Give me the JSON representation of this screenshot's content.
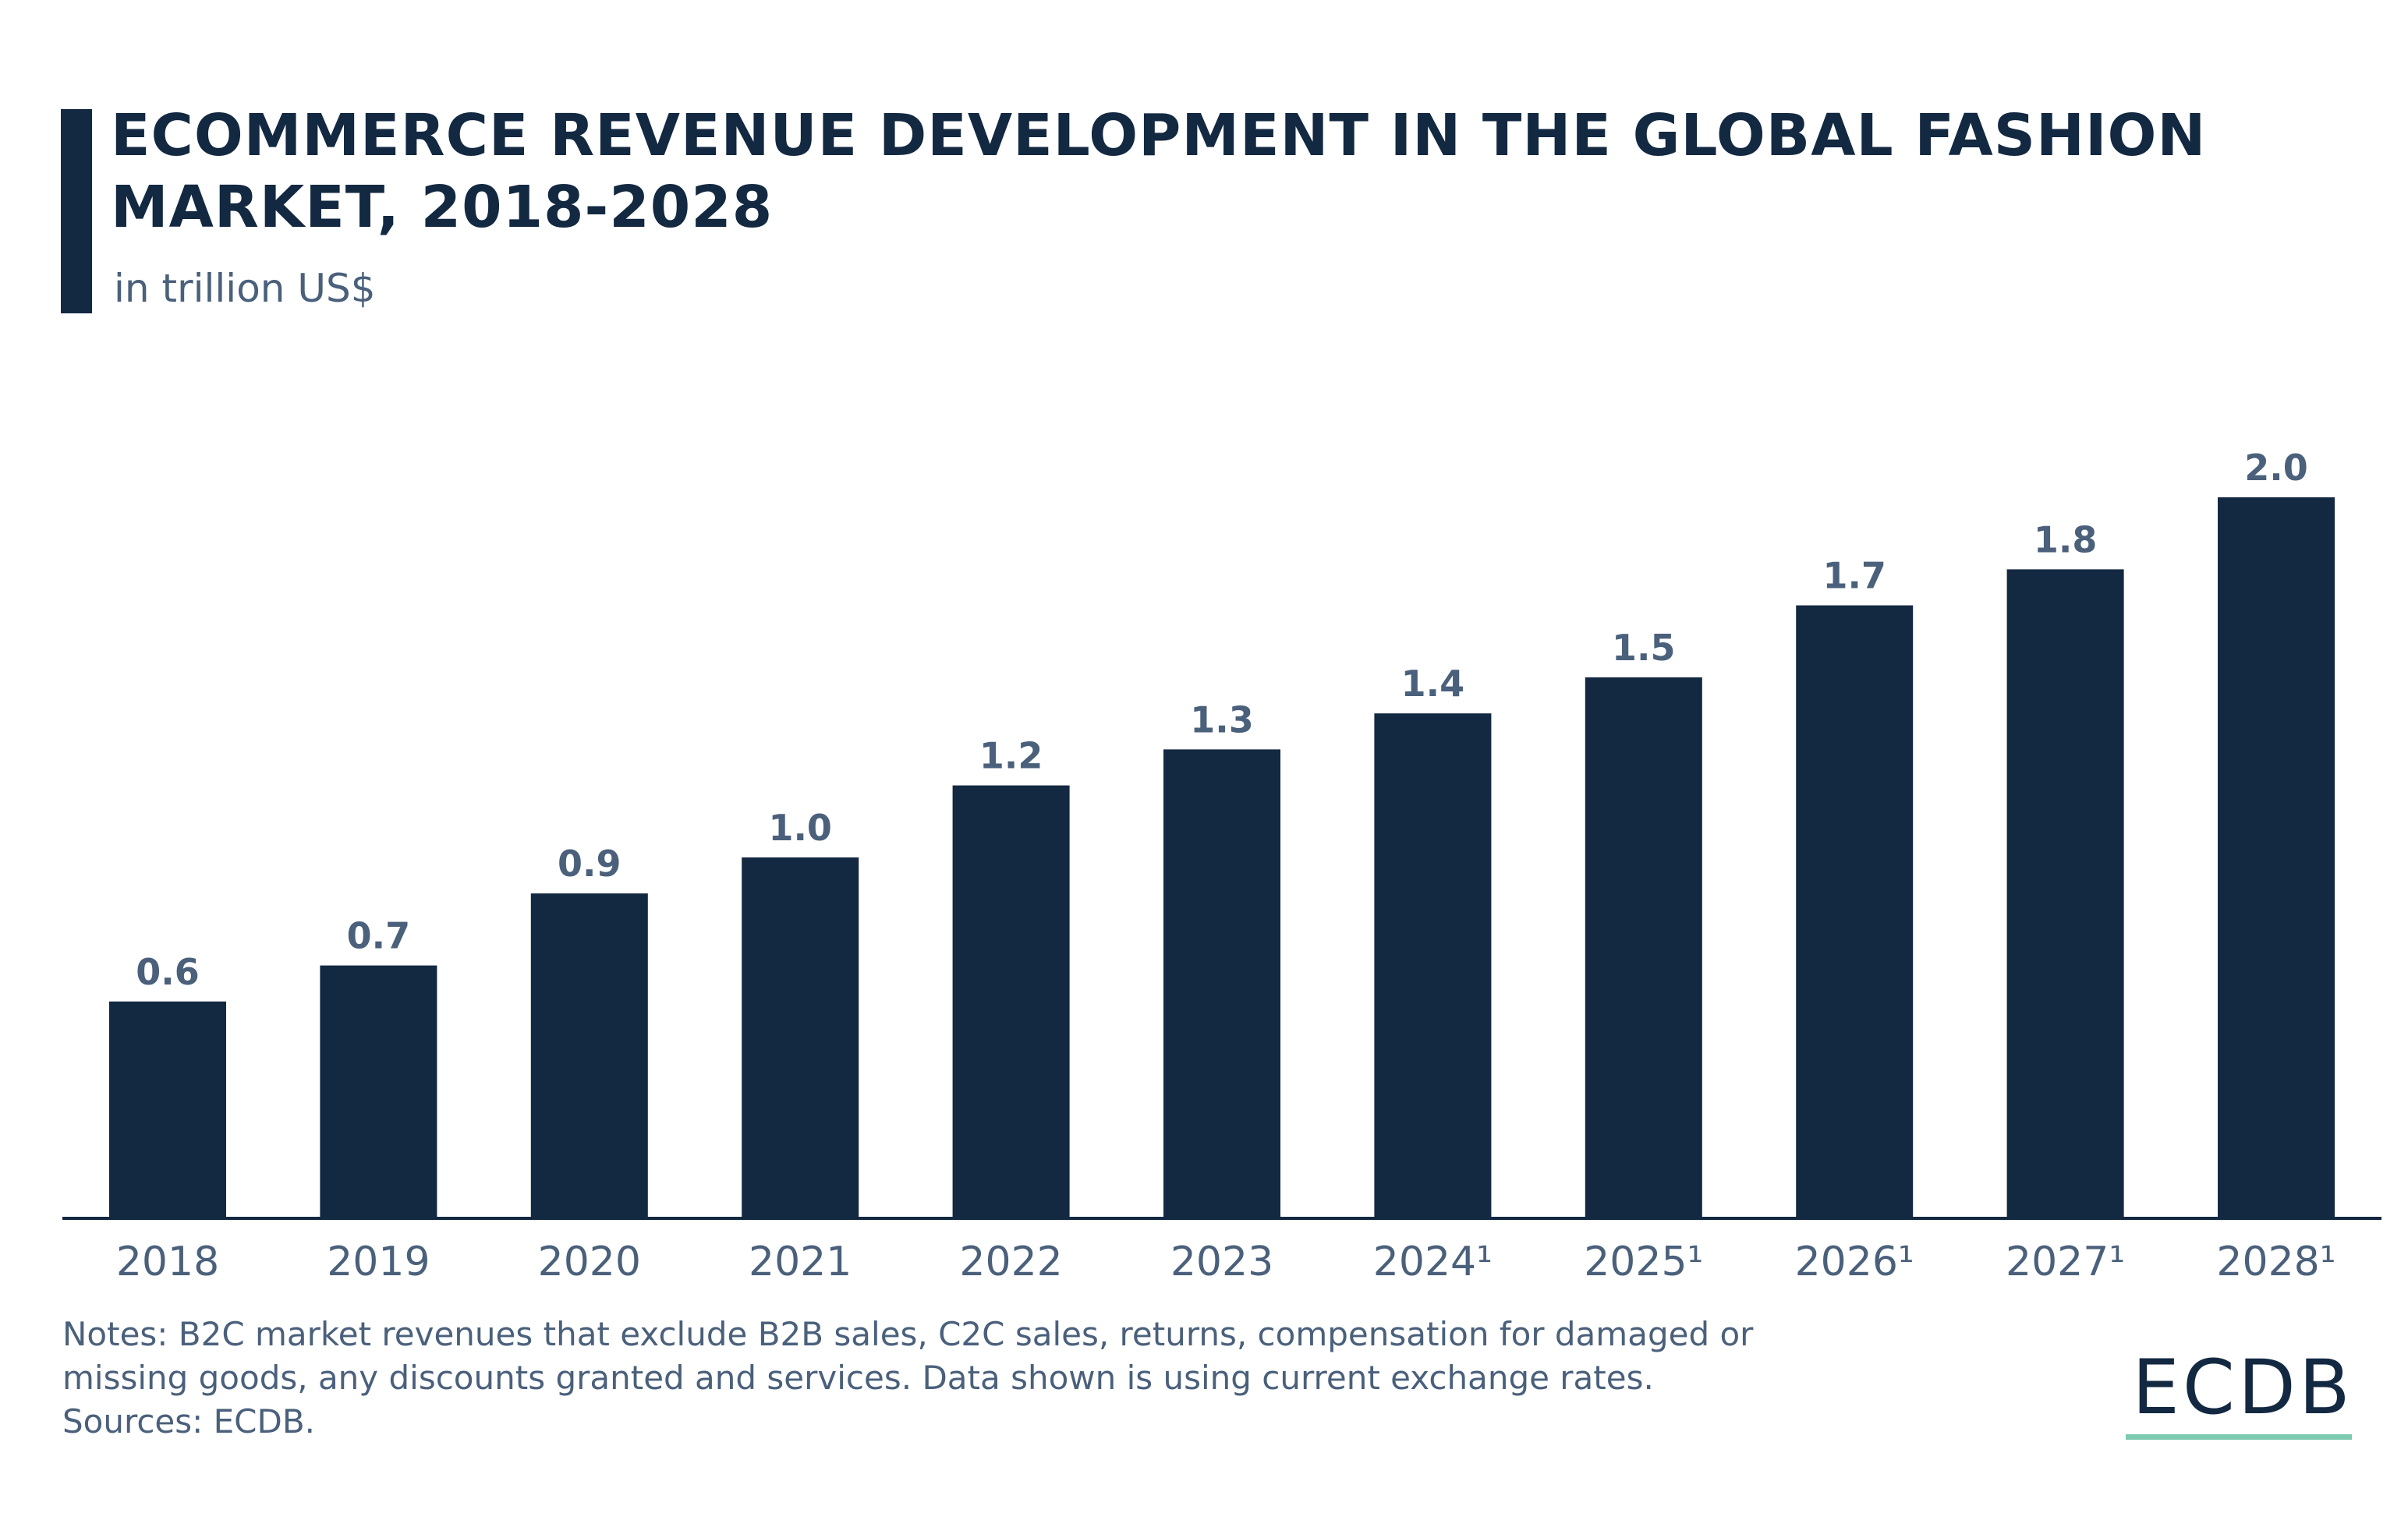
{
  "header": {
    "title": "ECOMMERCE REVENUE DEVELOPMENT IN THE GLOBAL FASHION MARKET, 2018-2028",
    "subtitle": "in trillion US$"
  },
  "chart_data": {
    "type": "bar",
    "title": "ECOMMERCE REVENUE DEVELOPMENT IN THE GLOBAL FASHION MARKET, 2018-2028",
    "subtitle": "in trillion US$",
    "xlabel": "",
    "ylabel": "in trillion US$",
    "categories": [
      "2018",
      "2019",
      "2020",
      "2021",
      "2022",
      "2023",
      "2024¹",
      "2025¹",
      "2026¹",
      "2027¹",
      "2028¹"
    ],
    "values": [
      0.6,
      0.7,
      0.9,
      1.0,
      1.2,
      1.3,
      1.4,
      1.5,
      1.7,
      1.8,
      2.0
    ],
    "value_labels": [
      "0.6",
      "0.7",
      "0.9",
      "1.0",
      "1.2",
      "1.3",
      "1.4",
      "1.5",
      "1.7",
      "1.8",
      "2.0"
    ],
    "ylim": [
      0,
      2.0
    ],
    "grid": false,
    "legend": "none",
    "colors": {
      "bar": "#132841",
      "axis": "#132841",
      "tick_label": "#4a607b",
      "value_label": "#4a607b"
    }
  },
  "footer": {
    "notes_line1": "Notes: B2C market revenues that exclude B2B sales, C2C sales, returns, compensation for damaged or",
    "notes_line2": "missing goods, any discounts granted and services. Data shown is using current exchange rates.",
    "sources": "Sources: ECDB."
  },
  "logo": {
    "text": "ECDB",
    "accent_color": "#7ccbb1"
  }
}
